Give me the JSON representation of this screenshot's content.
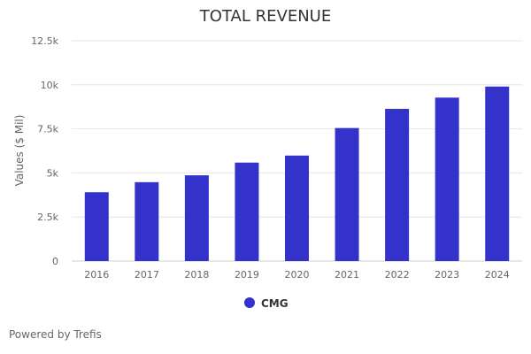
{
  "chart_data": {
    "type": "bar",
    "title": "TOTAL REVENUE",
    "xlabel": "",
    "ylabel": "Values ($ Mil)",
    "categories": [
      "2016",
      "2017",
      "2018",
      "2019",
      "2020",
      "2021",
      "2022",
      "2023",
      "2024"
    ],
    "series": [
      {
        "name": "CMG",
        "color": "#3333cc",
        "values": [
          3904,
          4476,
          4865,
          5586,
          5985,
          7547,
          8635,
          9272,
          9900
        ]
      }
    ],
    "ylim": [
      0,
      12500
    ],
    "yticks": [
      0,
      2500,
      5000,
      7500,
      10000,
      12500
    ],
    "ytick_labels": [
      "0",
      "2.5k",
      "5k",
      "7.5k",
      "10k",
      "12.5k"
    ],
    "grid": true,
    "legend_position": "bottom-center"
  },
  "footer": {
    "credit": "Powered by Trefis"
  },
  "colors": {
    "bar": "#3333cc",
    "grid": "#e6e6e6",
    "text": "#666666",
    "title": "#333333"
  }
}
